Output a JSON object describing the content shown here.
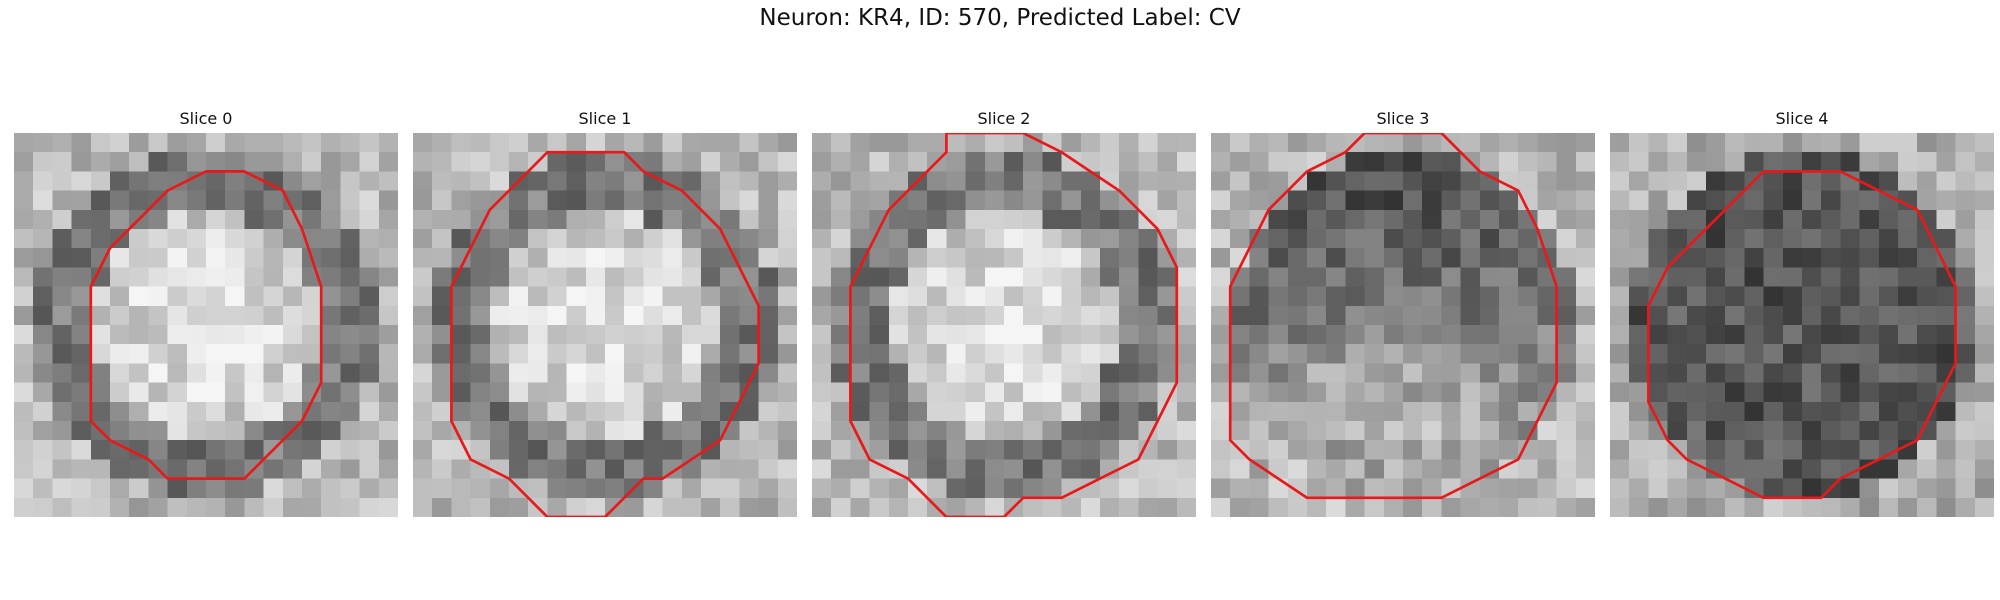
{
  "figure": {
    "title": "Neuron: KR4, ID: 570, Predicted Label: CV"
  },
  "panels": [
    {
      "title": "Slice 0",
      "pattern": "ring",
      "seed": 11,
      "contour": [
        [
          10,
          2
        ],
        [
          12,
          2
        ],
        [
          14,
          3
        ],
        [
          15,
          5
        ],
        [
          16,
          8
        ],
        [
          16,
          13
        ],
        [
          15,
          15
        ],
        [
          13,
          17
        ],
        [
          12,
          18
        ],
        [
          8,
          18
        ],
        [
          7,
          17
        ],
        [
          5,
          16
        ],
        [
          4,
          15
        ],
        [
          4,
          8
        ],
        [
          5,
          6
        ],
        [
          7,
          4
        ],
        [
          8,
          3
        ]
      ]
    },
    {
      "title": "Slice 1",
      "pattern": "ring",
      "seed": 23,
      "contour": [
        [
          7,
          1
        ],
        [
          11,
          1
        ],
        [
          12,
          2
        ],
        [
          14,
          3
        ],
        [
          16,
          5
        ],
        [
          17,
          7
        ],
        [
          18,
          9
        ],
        [
          18,
          12
        ],
        [
          17,
          14
        ],
        [
          16,
          16
        ],
        [
          13,
          18
        ],
        [
          12,
          18
        ],
        [
          10,
          20
        ],
        [
          7,
          20
        ],
        [
          5,
          18
        ],
        [
          3,
          17
        ],
        [
          2,
          15
        ],
        [
          2,
          8
        ],
        [
          3,
          6
        ],
        [
          4,
          4
        ],
        [
          6,
          2
        ]
      ]
    },
    {
      "title": "Slice 2",
      "pattern": "ring",
      "seed": 37,
      "contour": [
        [
          7,
          0
        ],
        [
          11,
          0
        ],
        [
          13,
          1
        ],
        [
          16,
          3
        ],
        [
          18,
          5
        ],
        [
          19,
          7
        ],
        [
          19,
          13
        ],
        [
          18,
          15
        ],
        [
          17,
          17
        ],
        [
          15,
          18
        ],
        [
          13,
          19
        ],
        [
          11,
          19
        ],
        [
          10,
          20
        ],
        [
          7,
          20
        ],
        [
          5,
          18
        ],
        [
          3,
          17
        ],
        [
          2,
          15
        ],
        [
          2,
          12
        ],
        [
          2,
          8
        ],
        [
          3,
          6
        ],
        [
          4,
          4
        ],
        [
          6,
          2
        ],
        [
          7,
          1
        ]
      ]
    },
    {
      "title": "Slice 3",
      "pattern": "darkTopLightBottom",
      "seed": 49,
      "contour": [
        [
          8,
          0
        ],
        [
          12,
          0
        ],
        [
          13,
          1
        ],
        [
          14,
          2
        ],
        [
          16,
          3
        ],
        [
          17,
          5
        ],
        [
          18,
          8
        ],
        [
          18,
          13
        ],
        [
          17,
          15
        ],
        [
          16,
          17
        ],
        [
          14,
          18
        ],
        [
          12,
          19
        ],
        [
          8,
          19
        ],
        [
          5,
          19
        ],
        [
          2,
          17
        ],
        [
          1,
          16
        ],
        [
          1,
          8
        ],
        [
          2,
          6
        ],
        [
          3,
          4
        ],
        [
          5,
          2
        ],
        [
          7,
          1
        ]
      ]
    },
    {
      "title": "Slice 4",
      "pattern": "dark",
      "seed": 61,
      "contour": [
        [
          8,
          2
        ],
        [
          12,
          2
        ],
        [
          14,
          3
        ],
        [
          16,
          4
        ],
        [
          17,
          6
        ],
        [
          18,
          8
        ],
        [
          18,
          12
        ],
        [
          17,
          14
        ],
        [
          16,
          16
        ],
        [
          14,
          17
        ],
        [
          12,
          18
        ],
        [
          11,
          19
        ],
        [
          8,
          19
        ],
        [
          6,
          18
        ],
        [
          4,
          17
        ],
        [
          3,
          16
        ],
        [
          2,
          14
        ],
        [
          2,
          9
        ],
        [
          3,
          7
        ],
        [
          5,
          5
        ],
        [
          7,
          3
        ]
      ]
    }
  ]
}
